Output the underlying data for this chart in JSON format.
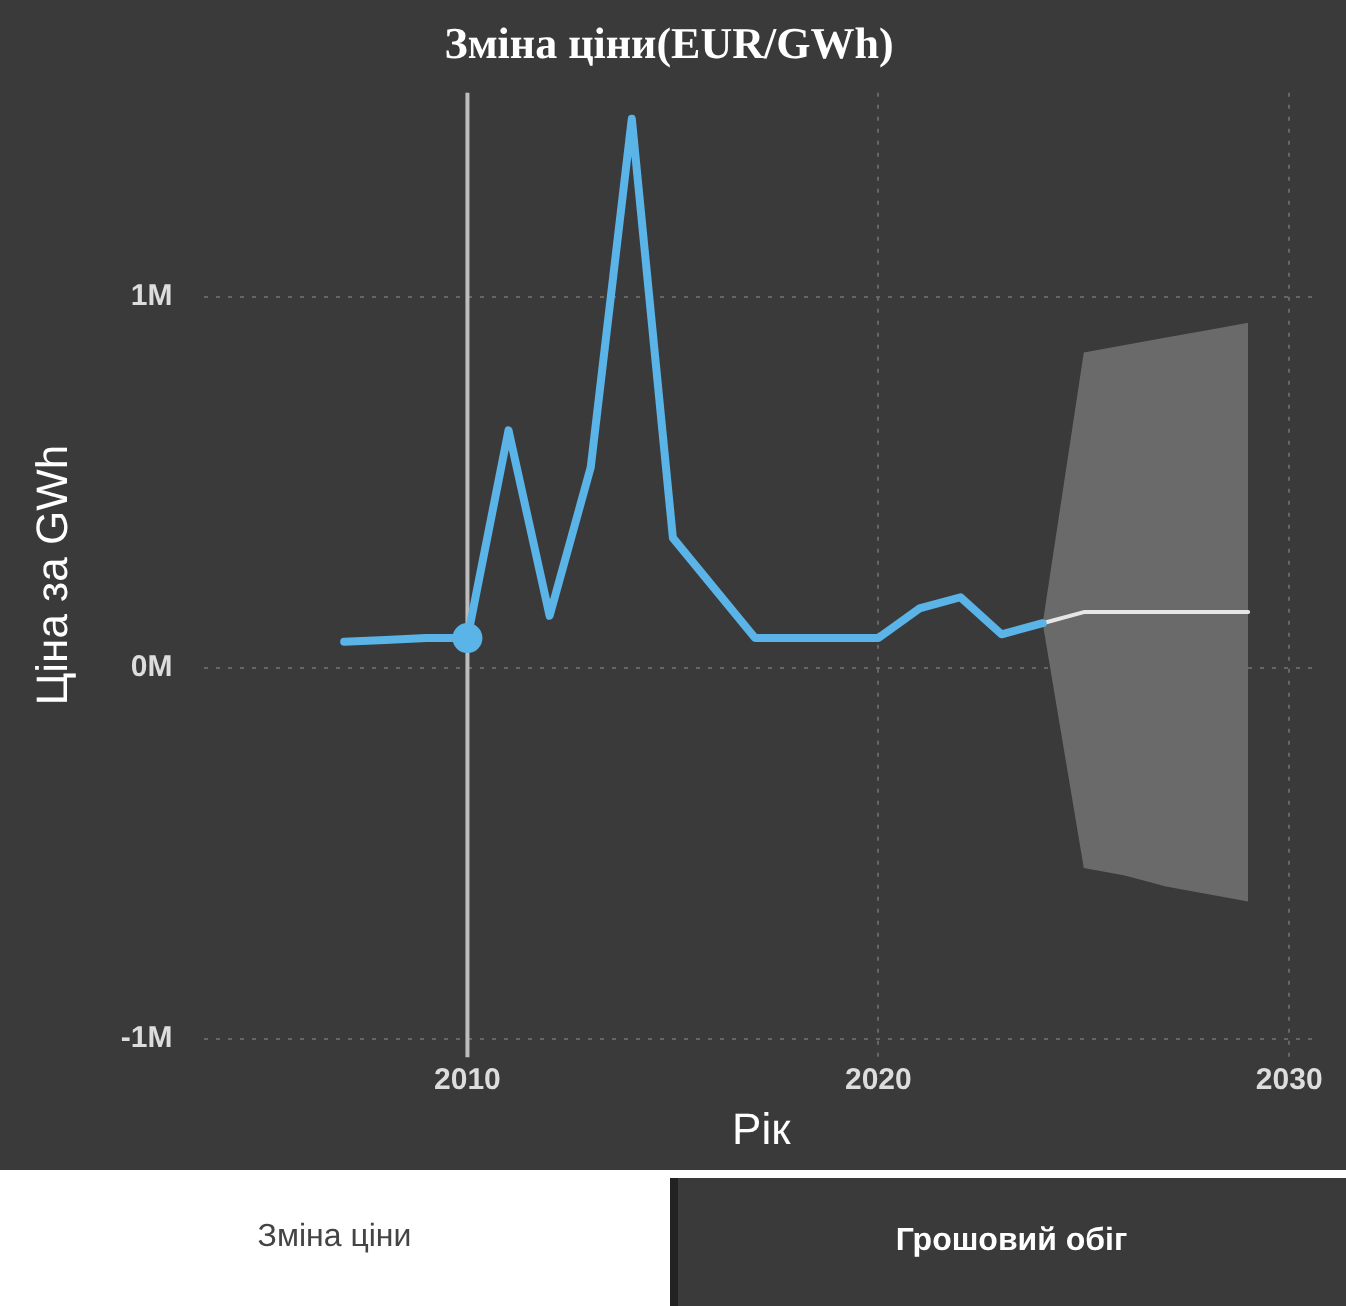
{
  "chart_data": {
    "type": "line",
    "title": "Зміна ціни(EUR/GWh)",
    "xlabel": "Рік",
    "ylabel": "Ціна за GWh",
    "series": [
      {
        "color": "#5ab4e8",
        "x": [
          2007,
          2008,
          2009,
          2010,
          2011,
          2012,
          2013,
          2014,
          2015,
          2017,
          2018,
          2019,
          2020,
          2021,
          2022,
          2023,
          2024
        ],
        "values": [
          70000,
          75000,
          80000,
          80000,
          640000,
          140000,
          540000,
          1480000,
          350000,
          80000,
          80000,
          80000,
          80000,
          160000,
          190000,
          90000,
          120000
        ]
      },
      {
        "color": "#e6e6e6",
        "x": [
          2024,
          2025,
          2026,
          2027,
          2028,
          2029
        ],
        "values": [
          120000,
          150000,
          150000,
          150000,
          150000,
          150000
        ],
        "lower": [
          120000,
          -540000,
          -560000,
          -590000,
          -610000,
          -630000
        ],
        "upper": [
          120000,
          850000,
          870000,
          890000,
          910000,
          930000
        ]
      },
      {
        "type": "scatter",
        "color": "#5ab4e8",
        "marker": "circle",
        "x": [
          2010
        ],
        "values": [
          80000
        ]
      }
    ],
    "ref_lines": [
      {
        "axis": "x",
        "value": 2010,
        "color": "#bdbdbd"
      }
    ],
    "xlim": [
      2003.6,
      2030.7
    ],
    "xticks": [
      2010,
      2020,
      2030
    ],
    "ylim": [
      -1050000,
      1550000
    ],
    "yticks": [
      {
        "value": -1000000,
        "label": "-1M"
      },
      {
        "value": 0,
        "label": "0M"
      },
      {
        "value": 1000000,
        "label": "1M"
      }
    ],
    "grid": true,
    "legend": false,
    "annotations": [
      "Зміна ціни",
      "Грошовий обіг"
    ]
  }
}
